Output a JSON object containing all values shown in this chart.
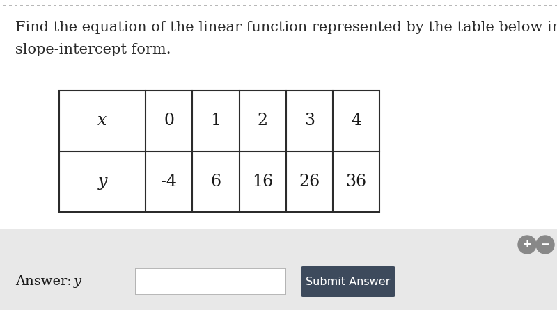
{
  "title_line1": "Find the equation of the linear function represented by the table below in",
  "title_line2": "slope-intercept form.",
  "title_fontsize": 15.0,
  "title_color": "#2b2b2b",
  "background_color": "#ffffff",
  "bottom_bar_color": "#e8e8e8",
  "table_x_values": [
    "x",
    "0",
    "1",
    "2",
    "3",
    "4"
  ],
  "table_y_values": [
    "y",
    "-4",
    "6",
    "16",
    "26",
    "36"
  ],
  "submit_button_text": "Submit Answer",
  "submit_button_color": "#3d4a5c",
  "submit_button_text_color": "#ffffff",
  "dotted_line_color": "#aaaaaa",
  "font_family": "serif",
  "table_cell_fontsize": 17,
  "answer_fontsize": 14
}
